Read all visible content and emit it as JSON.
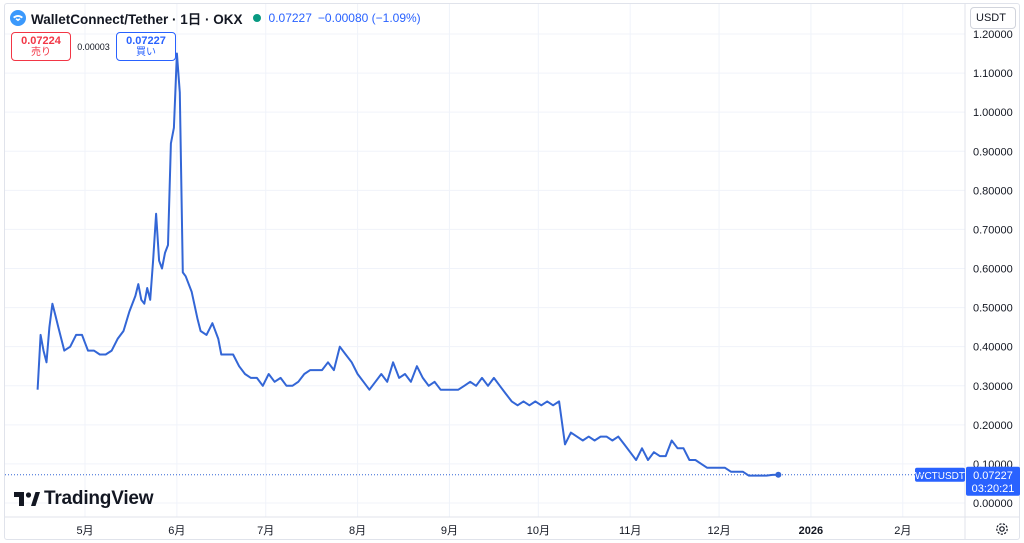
{
  "header": {
    "symbol": "WalletConnect/Tether · 1日 · OKX",
    "price": "0.07227",
    "change": "−0.00080 (−1.09%)",
    "color": "#2962ff",
    "status_color": "#089981"
  },
  "trade": {
    "sell_price": "0.07224",
    "sell_label": "売り",
    "spread": "0.00003",
    "buy_price": "0.07227",
    "buy_label": "買い"
  },
  "currency_button": "USDT",
  "brand": "TradingView",
  "settings_icon": "gear-icon",
  "chart_data": {
    "type": "line",
    "line_color": "#3366d6",
    "yticks": [
      "1.20000",
      "1.10000",
      "1.00000",
      "0.90000",
      "0.80000",
      "0.70000",
      "0.60000",
      "0.50000",
      "0.40000",
      "0.30000",
      "0.20000",
      "0.10000",
      "0.00000"
    ],
    "ylim": [
      0,
      1.2
    ],
    "xticks": [
      {
        "label": "5月",
        "date": "2025-05-01"
      },
      {
        "label": "6月",
        "date": "2025-06-01"
      },
      {
        "label": "7月",
        "date": "2025-07-01"
      },
      {
        "label": "8月",
        "date": "2025-08-01"
      },
      {
        "label": "9月",
        "date": "2025-09-01"
      },
      {
        "label": "10月",
        "date": "2025-10-01"
      },
      {
        "label": "11月",
        "date": "2025-11-01"
      },
      {
        "label": "12月",
        "date": "2025-12-01"
      },
      {
        "label": "2026",
        "date": "2026-01-01",
        "bold": true
      },
      {
        "label": "2月",
        "date": "2026-02-01"
      }
    ],
    "xlim": [
      "2025-04-04",
      "2026-02-22"
    ],
    "grid": true,
    "last_value": 0.07227,
    "price_label": "WCTUSDT",
    "last_value_label": "0.07227",
    "countdown": "03:20:21",
    "series": [
      {
        "values": [
          [
            "2025-04-15",
            0.29
          ],
          [
            "2025-04-16",
            0.43
          ],
          [
            "2025-04-17",
            0.39
          ],
          [
            "2025-04-18",
            0.36
          ],
          [
            "2025-04-19",
            0.45
          ],
          [
            "2025-04-20",
            0.51
          ],
          [
            "2025-04-21",
            0.48
          ],
          [
            "2025-04-22",
            0.45
          ],
          [
            "2025-04-23",
            0.42
          ],
          [
            "2025-04-24",
            0.39
          ],
          [
            "2025-04-26",
            0.4
          ],
          [
            "2025-04-28",
            0.43
          ],
          [
            "2025-04-30",
            0.43
          ],
          [
            "2025-05-01",
            0.41
          ],
          [
            "2025-05-02",
            0.39
          ],
          [
            "2025-05-04",
            0.39
          ],
          [
            "2025-05-06",
            0.38
          ],
          [
            "2025-05-08",
            0.38
          ],
          [
            "2025-05-10",
            0.39
          ],
          [
            "2025-05-12",
            0.42
          ],
          [
            "2025-05-14",
            0.44
          ],
          [
            "2025-05-16",
            0.49
          ],
          [
            "2025-05-18",
            0.53
          ],
          [
            "2025-05-19",
            0.56
          ],
          [
            "2025-05-20",
            0.52
          ],
          [
            "2025-05-21",
            0.51
          ],
          [
            "2025-05-22",
            0.55
          ],
          [
            "2025-05-23",
            0.52
          ],
          [
            "2025-05-24",
            0.62
          ],
          [
            "2025-05-25",
            0.74
          ],
          [
            "2025-05-26",
            0.62
          ],
          [
            "2025-05-27",
            0.6
          ],
          [
            "2025-05-28",
            0.64
          ],
          [
            "2025-05-29",
            0.66
          ],
          [
            "2025-05-30",
            0.92
          ],
          [
            "2025-05-31",
            0.96
          ],
          [
            "2025-06-01",
            1.15
          ],
          [
            "2025-06-02",
            1.05
          ],
          [
            "2025-06-03",
            0.59
          ],
          [
            "2025-06-04",
            0.58
          ],
          [
            "2025-06-06",
            0.54
          ],
          [
            "2025-06-08",
            0.47
          ],
          [
            "2025-06-09",
            0.44
          ],
          [
            "2025-06-11",
            0.43
          ],
          [
            "2025-06-13",
            0.46
          ],
          [
            "2025-06-15",
            0.42
          ],
          [
            "2025-06-16",
            0.38
          ],
          [
            "2025-06-18",
            0.38
          ],
          [
            "2025-06-20",
            0.38
          ],
          [
            "2025-06-22",
            0.35
          ],
          [
            "2025-06-24",
            0.33
          ],
          [
            "2025-06-26",
            0.32
          ],
          [
            "2025-06-28",
            0.32
          ],
          [
            "2025-06-30",
            0.3
          ],
          [
            "2025-07-02",
            0.33
          ],
          [
            "2025-07-04",
            0.31
          ],
          [
            "2025-07-06",
            0.32
          ],
          [
            "2025-07-08",
            0.3
          ],
          [
            "2025-07-10",
            0.3
          ],
          [
            "2025-07-12",
            0.31
          ],
          [
            "2025-07-14",
            0.33
          ],
          [
            "2025-07-16",
            0.34
          ],
          [
            "2025-07-18",
            0.34
          ],
          [
            "2025-07-20",
            0.34
          ],
          [
            "2025-07-22",
            0.36
          ],
          [
            "2025-07-24",
            0.34
          ],
          [
            "2025-07-26",
            0.4
          ],
          [
            "2025-07-28",
            0.38
          ],
          [
            "2025-07-30",
            0.36
          ],
          [
            "2025-08-01",
            0.33
          ],
          [
            "2025-08-03",
            0.31
          ],
          [
            "2025-08-05",
            0.29
          ],
          [
            "2025-08-07",
            0.31
          ],
          [
            "2025-08-09",
            0.33
          ],
          [
            "2025-08-11",
            0.31
          ],
          [
            "2025-08-13",
            0.36
          ],
          [
            "2025-08-15",
            0.32
          ],
          [
            "2025-08-17",
            0.33
          ],
          [
            "2025-08-19",
            0.31
          ],
          [
            "2025-08-21",
            0.35
          ],
          [
            "2025-08-23",
            0.32
          ],
          [
            "2025-08-25",
            0.3
          ],
          [
            "2025-08-27",
            0.31
          ],
          [
            "2025-08-29",
            0.29
          ],
          [
            "2025-08-31",
            0.29
          ],
          [
            "2025-09-02",
            0.29
          ],
          [
            "2025-09-04",
            0.29
          ],
          [
            "2025-09-06",
            0.3
          ],
          [
            "2025-09-08",
            0.31
          ],
          [
            "2025-09-10",
            0.3
          ],
          [
            "2025-09-12",
            0.32
          ],
          [
            "2025-09-14",
            0.3
          ],
          [
            "2025-09-16",
            0.32
          ],
          [
            "2025-09-18",
            0.3
          ],
          [
            "2025-09-20",
            0.28
          ],
          [
            "2025-09-22",
            0.26
          ],
          [
            "2025-09-24",
            0.25
          ],
          [
            "2025-09-26",
            0.26
          ],
          [
            "2025-09-28",
            0.25
          ],
          [
            "2025-09-30",
            0.26
          ],
          [
            "2025-10-02",
            0.25
          ],
          [
            "2025-10-04",
            0.26
          ],
          [
            "2025-10-06",
            0.25
          ],
          [
            "2025-10-08",
            0.26
          ],
          [
            "2025-10-10",
            0.15
          ],
          [
            "2025-10-12",
            0.18
          ],
          [
            "2025-10-14",
            0.17
          ],
          [
            "2025-10-16",
            0.16
          ],
          [
            "2025-10-18",
            0.17
          ],
          [
            "2025-10-20",
            0.16
          ],
          [
            "2025-10-22",
            0.17
          ],
          [
            "2025-10-24",
            0.17
          ],
          [
            "2025-10-26",
            0.16
          ],
          [
            "2025-10-28",
            0.17
          ],
          [
            "2025-10-30",
            0.15
          ],
          [
            "2025-11-01",
            0.13
          ],
          [
            "2025-11-03",
            0.11
          ],
          [
            "2025-11-05",
            0.14
          ],
          [
            "2025-11-07",
            0.11
          ],
          [
            "2025-11-09",
            0.13
          ],
          [
            "2025-11-11",
            0.12
          ],
          [
            "2025-11-13",
            0.12
          ],
          [
            "2025-11-15",
            0.16
          ],
          [
            "2025-11-17",
            0.14
          ],
          [
            "2025-11-19",
            0.14
          ],
          [
            "2025-11-21",
            0.11
          ],
          [
            "2025-11-23",
            0.11
          ],
          [
            "2025-11-25",
            0.1
          ],
          [
            "2025-11-27",
            0.09
          ],
          [
            "2025-11-29",
            0.09
          ],
          [
            "2025-12-01",
            0.09
          ],
          [
            "2025-12-03",
            0.09
          ],
          [
            "2025-12-05",
            0.08
          ],
          [
            "2025-12-07",
            0.08
          ],
          [
            "2025-12-09",
            0.08
          ],
          [
            "2025-12-11",
            0.07
          ],
          [
            "2025-12-13",
            0.07
          ],
          [
            "2025-12-15",
            0.07
          ],
          [
            "2025-12-17",
            0.07
          ],
          [
            "2025-12-19",
            0.072
          ],
          [
            "2025-12-21",
            0.07227
          ]
        ]
      }
    ]
  }
}
